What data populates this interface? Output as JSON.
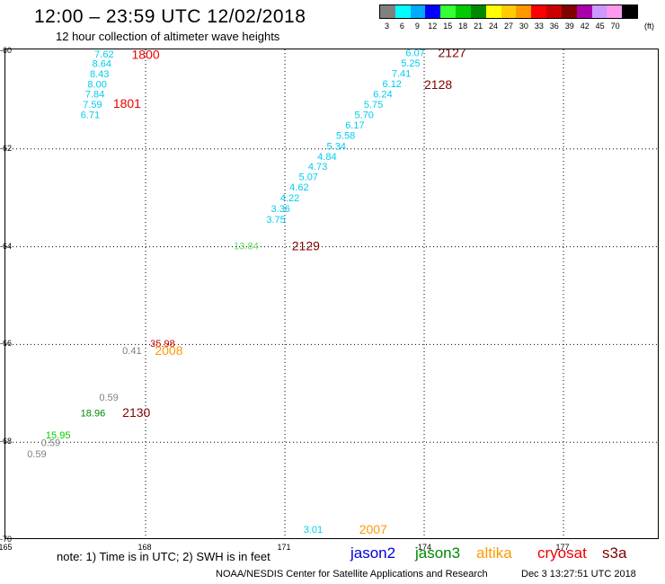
{
  "header": {
    "title": "12:00 – 23:59 UTC 12/02/2018",
    "subtitle": "12 hour collection of altimeter wave heights"
  },
  "color_scale": {
    "unit": "(ft)",
    "bins": [
      {
        "label": "3",
        "color": "#808080"
      },
      {
        "label": "6",
        "color": "#00ffff"
      },
      {
        "label": "9",
        "color": "#00aaff"
      },
      {
        "label": "12",
        "color": "#0000ff"
      },
      {
        "label": "15",
        "color": "#33ff33"
      },
      {
        "label": "18",
        "color": "#00cc00"
      },
      {
        "label": "21",
        "color": "#008800"
      },
      {
        "label": "24",
        "color": "#ffff00"
      },
      {
        "label": "27",
        "color": "#ffcc00"
      },
      {
        "label": "30",
        "color": "#ff9900"
      },
      {
        "label": "33",
        "color": "#ff0000"
      },
      {
        "label": "36",
        "color": "#cc0000"
      },
      {
        "label": "39",
        "color": "#800000"
      },
      {
        "label": "42",
        "color": "#aa00aa"
      },
      {
        "label": "45",
        "color": "#cc99ff"
      },
      {
        "label": "70",
        "color": "#ff99ee"
      },
      {
        "label": "",
        "color": "#000000"
      }
    ]
  },
  "map": {
    "lat_labels": [
      "-60",
      "-62",
      "-64",
      "-66",
      "-68",
      "-70"
    ],
    "lon_labels": [
      "165",
      "168",
      "171",
      "-174",
      "177"
    ],
    "swh_labels": [
      {
        "text": "7.62",
        "lon": 166.9,
        "lat": -60.06,
        "color": "#00ccee"
      },
      {
        "text": "8.64",
        "lon": 166.85,
        "lat": -60.25,
        "color": "#00ccee"
      },
      {
        "text": "8.43",
        "lon": 166.8,
        "lat": -60.46,
        "color": "#00ccee"
      },
      {
        "text": "8.00",
        "lon": 166.75,
        "lat": -60.67,
        "color": "#00ccee"
      },
      {
        "text": "7.84",
        "lon": 166.7,
        "lat": -60.88,
        "color": "#00ccee"
      },
      {
        "text": "7.59",
        "lon": 166.65,
        "lat": -61.09,
        "color": "#00ccee"
      },
      {
        "text": "6.71",
        "lon": 166.6,
        "lat": -61.3,
        "color": "#00ccee"
      },
      {
        "text": "6.07",
        "lon": 173.6,
        "lat": -60.03,
        "color": "#00ccee"
      },
      {
        "text": "5.25",
        "lon": 173.5,
        "lat": -60.24,
        "color": "#00ccee"
      },
      {
        "text": "7.41",
        "lon": 173.3,
        "lat": -60.45,
        "color": "#00ccee"
      },
      {
        "text": "6.12",
        "lon": 173.1,
        "lat": -60.66,
        "color": "#00ccee"
      },
      {
        "text": "6.24",
        "lon": 172.9,
        "lat": -60.88,
        "color": "#00ccee"
      },
      {
        "text": "5.75",
        "lon": 172.7,
        "lat": -61.09,
        "color": "#00ccee"
      },
      {
        "text": "5.70",
        "lon": 172.5,
        "lat": -61.3,
        "color": "#00ccee"
      },
      {
        "text": "6.17",
        "lon": 172.3,
        "lat": -61.51,
        "color": "#00ccee"
      },
      {
        "text": "5.58",
        "lon": 172.1,
        "lat": -61.72,
        "color": "#00ccee"
      },
      {
        "text": "5.34",
        "lon": 171.9,
        "lat": -61.94,
        "color": "#00ccee"
      },
      {
        "text": "4.84",
        "lon": 171.7,
        "lat": -62.15,
        "color": "#00ccee"
      },
      {
        "text": "4.73",
        "lon": 171.5,
        "lat": -62.36,
        "color": "#00ccee"
      },
      {
        "text": "5.07",
        "lon": 171.3,
        "lat": -62.57,
        "color": "#00ccee"
      },
      {
        "text": "4.62",
        "lon": 171.1,
        "lat": -62.78,
        "color": "#00ccee"
      },
      {
        "text": "4.22",
        "lon": 170.9,
        "lat": -63.0,
        "color": "#00ccee"
      },
      {
        "text": "3.36",
        "lon": 170.7,
        "lat": -63.22,
        "color": "#00ccee"
      },
      {
        "text": "3.75",
        "lon": 170.6,
        "lat": -63.44,
        "color": "#00ccee"
      },
      {
        "text": "13.84",
        "lon": 169.9,
        "lat": -63.98,
        "color": "#66dd66"
      },
      {
        "text": "0.41",
        "lon": 167.5,
        "lat": -66.12,
        "color": "#808080"
      },
      {
        "text": "35.98",
        "lon": 168.1,
        "lat": -65.98,
        "color": "#cc0000"
      },
      {
        "text": "0.59",
        "lon": 167.0,
        "lat": -67.08,
        "color": "#808080"
      },
      {
        "text": "18.96",
        "lon": 166.6,
        "lat": -67.4,
        "color": "#008800"
      },
      {
        "text": "15.95",
        "lon": 165.85,
        "lat": -67.85,
        "color": "#00cc00"
      },
      {
        "text": "0.59",
        "lon": 165.75,
        "lat": -68.01,
        "color": "#808080"
      },
      {
        "text": "0.59",
        "lon": 165.45,
        "lat": -68.24,
        "color": "#808080"
      },
      {
        "text": "3.01",
        "lon": 171.4,
        "lat": -69.78,
        "color": "#00ccee"
      }
    ],
    "time_labels": [
      {
        "text": "1800",
        "lon": 167.7,
        "lat": -60.07,
        "color": "#ee0000"
      },
      {
        "text": "1801",
        "lon": 167.3,
        "lat": -61.07,
        "color": "#ee0000"
      },
      {
        "text": "2127",
        "lon": 174.3,
        "lat": -60.03,
        "color": "#800000"
      },
      {
        "text": "2128",
        "lon": 174.0,
        "lat": -60.68,
        "color": "#800000"
      },
      {
        "text": "2129",
        "lon": 171.15,
        "lat": -63.98,
        "color": "#800000"
      },
      {
        "text": "2008",
        "lon": 168.2,
        "lat": -66.12,
        "color": "#ff9900"
      },
      {
        "text": "2130",
        "lon": 167.5,
        "lat": -67.39,
        "color": "#800000"
      },
      {
        "text": "2007",
        "lon": 172.6,
        "lat": -69.78,
        "color": "#ff9900"
      }
    ]
  },
  "footer": {
    "note": "note:  1) Time is in UTC;  2) SWH is in feet",
    "satellites": [
      {
        "name": "jason2",
        "color": "#0000dd"
      },
      {
        "name": "jason3",
        "color": "#008800"
      },
      {
        "name": "altika",
        "color": "#ff9900"
      },
      {
        "name": "cryosat",
        "color": "#ee0000"
      },
      {
        "name": "s3a",
        "color": "#800000"
      }
    ],
    "credit": "NOAA/NESDIS Center for Satellite Applications and Research",
    "timestamp": "Dec  3 13:27:51 UTC 2018"
  }
}
